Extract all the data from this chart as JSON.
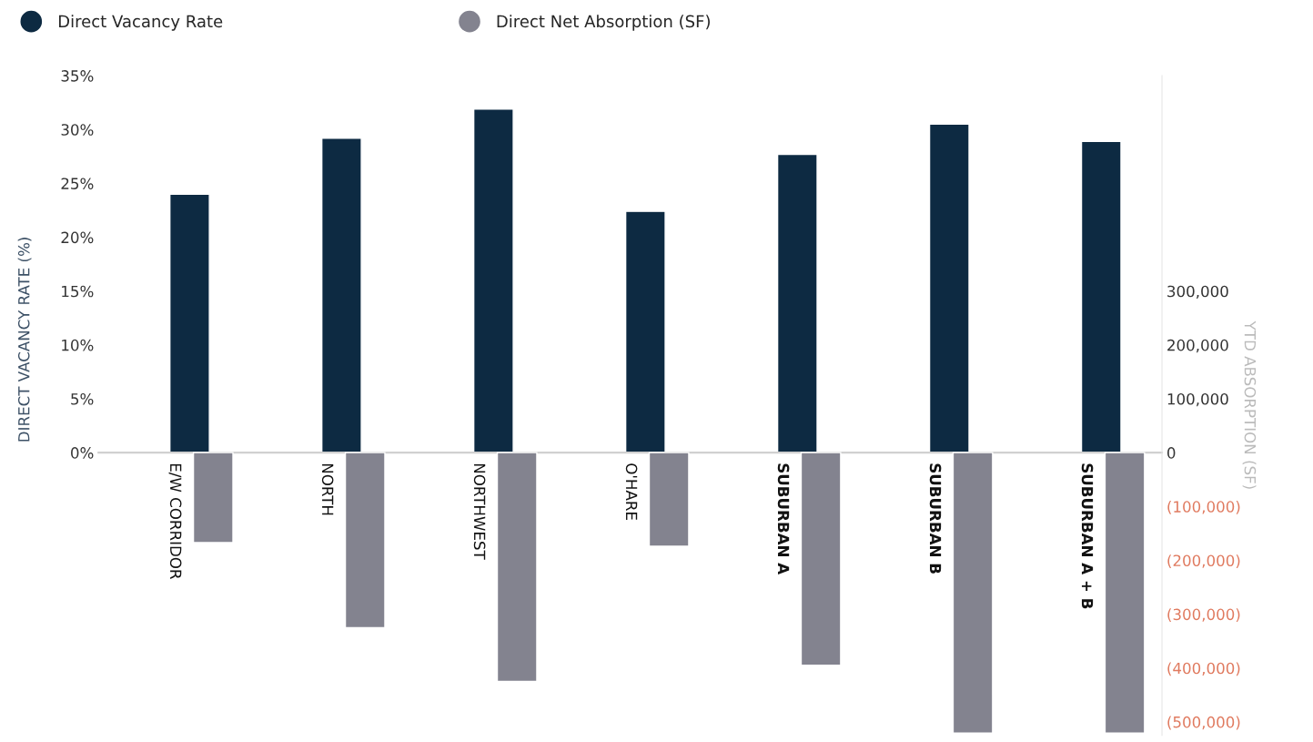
{
  "chart_data": {
    "type": "bar",
    "categories": [
      "E/W CORRIDOR",
      "NORTH",
      "NORTHWEST",
      "O'HARE",
      "SUBURBAN A",
      "SUBURBAN B",
      "SUBURBAN A + B"
    ],
    "series": [
      {
        "name": "Direct Vacancy Rate",
        "color": "#0d2a42",
        "values": [
          24.0,
          29.2,
          31.9,
          22.4,
          27.7,
          30.5,
          28.9
        ]
      },
      {
        "name": "Direct Net Absorption (SF)",
        "color": "#83838f",
        "axis": "y2",
        "values": [
          -167000,
          -325000,
          -425000,
          -174000,
          -395000,
          -521000,
          -521000
        ]
      }
    ],
    "ylabel": "DIRECT VACANCY RATE (%)",
    "y2label": "YTD ABSORPTION (SF)",
    "ylim": [
      -26.25,
      35
    ],
    "yticks": [
      {
        "value": 0,
        "label": "0%"
      },
      {
        "value": 5,
        "label": "5%"
      },
      {
        "value": 10,
        "label": "10%"
      },
      {
        "value": 15,
        "label": "15%"
      },
      {
        "value": 20,
        "label": "20%"
      },
      {
        "value": 25,
        "label": "25%"
      },
      {
        "value": 30,
        "label": "30%"
      },
      {
        "value": 35,
        "label": "35%"
      }
    ],
    "y2lim": [
      -525000,
      700000
    ],
    "y2ticks": [
      {
        "value": -500000,
        "label": "(500,000)"
      },
      {
        "value": -400000,
        "label": "(400,000)"
      },
      {
        "value": -300000,
        "label": "(300,000)"
      },
      {
        "value": -200000,
        "label": "(200,000)"
      },
      {
        "value": -100000,
        "label": "(100,000)"
      },
      0,
      {
        "value": 100000,
        "label": "100,000"
      },
      {
        "value": 200000,
        "label": "200,000"
      },
      {
        "value": 300000,
        "label": "300,000"
      }
    ],
    "grid": false,
    "legend": "top left"
  }
}
